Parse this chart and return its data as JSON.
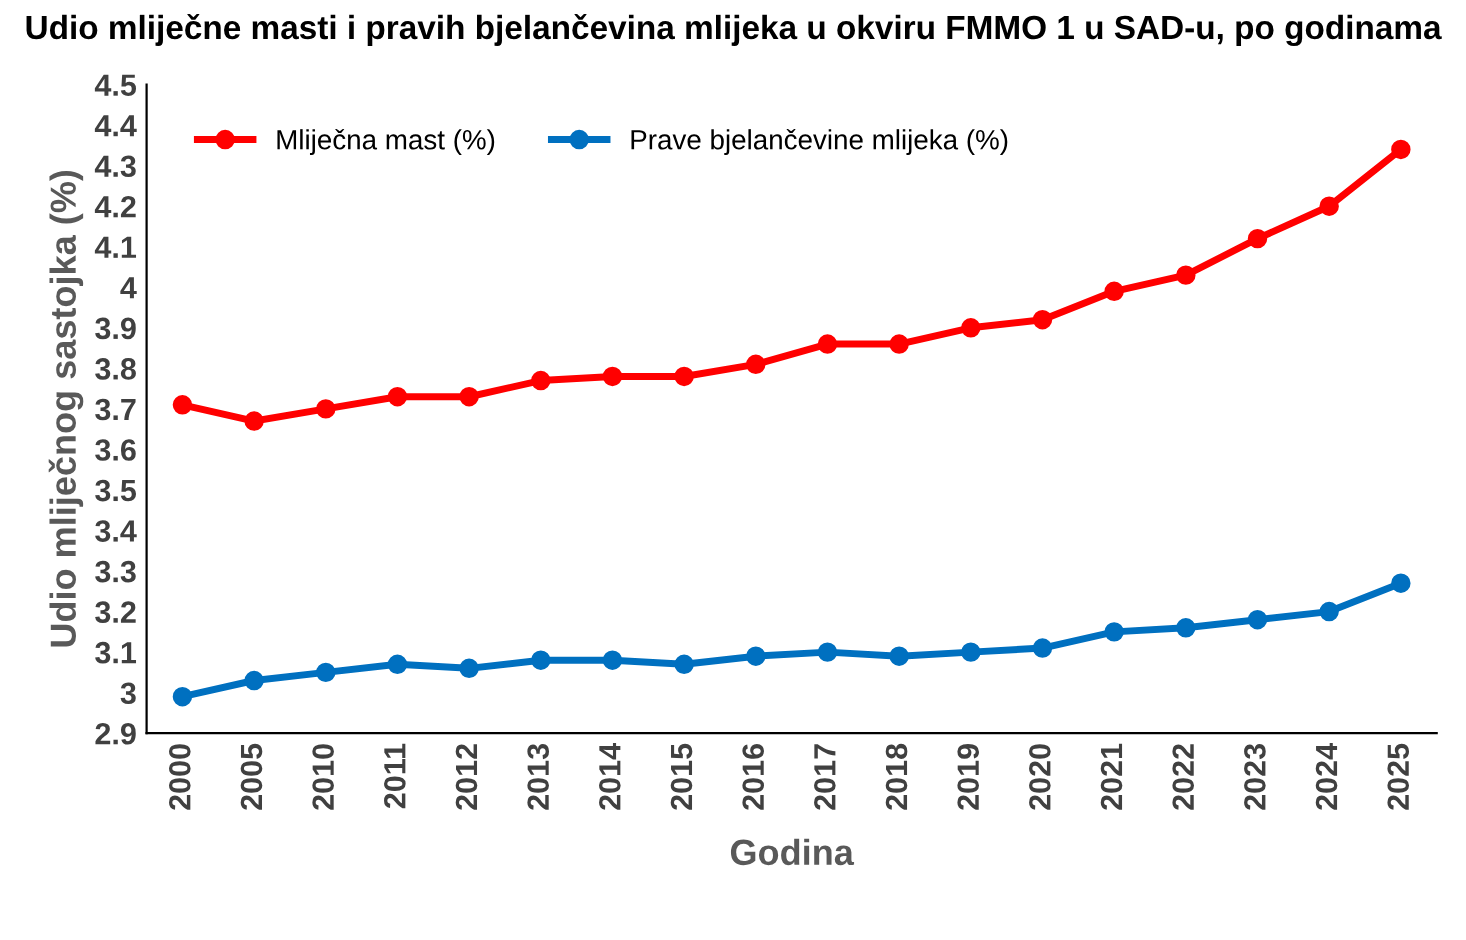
{
  "chart_data": {
    "type": "line",
    "title": "Udio mliječne masti i pravih bjelančevina mlijeka u okviru FMMO 1 u SAD-u, po godinama",
    "xlabel": "Godina",
    "ylabel": "Udio mliječnog sastojka (%)",
    "categories": [
      "2000",
      "2005",
      "2010",
      "2011",
      "2012",
      "2013",
      "2014",
      "2015",
      "2016",
      "2017",
      "2018",
      "2019",
      "2020",
      "2021",
      "2022",
      "2023",
      "2024",
      "2025"
    ],
    "series": [
      {
        "name": "Mliječna mast (%)",
        "color": "#ff0000",
        "values": [
          3.71,
          3.67,
          3.7,
          3.73,
          3.73,
          3.77,
          3.78,
          3.78,
          3.81,
          3.86,
          3.86,
          3.9,
          3.92,
          3.99,
          4.03,
          4.12,
          4.2,
          4.34
        ]
      },
      {
        "name": "Prave bjelančevine mlijeka (%)",
        "color": "#0070c0",
        "values": [
          2.99,
          3.03,
          3.05,
          3.07,
          3.06,
          3.08,
          3.08,
          3.07,
          3.09,
          3.1,
          3.09,
          3.1,
          3.11,
          3.15,
          3.16,
          3.18,
          3.2,
          3.27
        ]
      }
    ],
    "ylim": [
      2.9,
      4.5
    ],
    "yticks": [
      2.9,
      3,
      3.1,
      3.2,
      3.3,
      3.4,
      3.5,
      3.6,
      3.7,
      3.8,
      3.9,
      4,
      4.1,
      4.2,
      4.3,
      4.4,
      4.5
    ],
    "grid": false,
    "legend": "top left",
    "marker": "circle",
    "line_style": "solid"
  }
}
